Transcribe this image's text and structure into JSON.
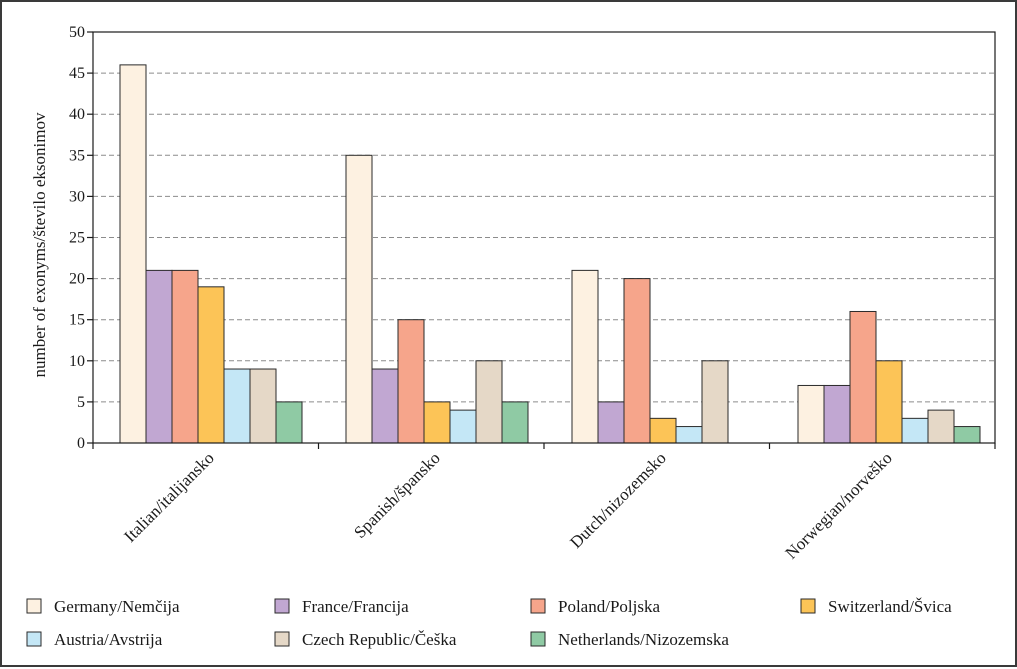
{
  "chart_data": {
    "type": "bar",
    "ylabel": "number of exonyms/število eksonimov",
    "xlabel": "",
    "ylim": [
      0,
      50
    ],
    "yticks": [
      0,
      5,
      10,
      15,
      20,
      25,
      30,
      35,
      40,
      45,
      50
    ],
    "grid": true,
    "legend_position": "bottom",
    "categories": [
      "Italian/italijansko",
      "Spanish/špansko",
      "Dutch/nizozemsko",
      "Norwegian/norveško"
    ],
    "series": [
      {
        "name": "Germany/Nemčija",
        "color": "#fdf1e1",
        "values": [
          46,
          35,
          21,
          7
        ]
      },
      {
        "name": "France/Francija",
        "color": "#c1a7d2",
        "values": [
          21,
          9,
          5,
          7
        ]
      },
      {
        "name": "Poland/Poljska",
        "color": "#f6a58b",
        "values": [
          21,
          15,
          20,
          16
        ]
      },
      {
        "name": "Switzerland/Švica",
        "color": "#fcc457",
        "values": [
          19,
          5,
          3,
          10
        ]
      },
      {
        "name": "Austria/Avstrija",
        "color": "#c4e7f6",
        "values": [
          9,
          4,
          2,
          3
        ]
      },
      {
        "name": "Czech Republic/Češka",
        "color": "#e5d8c7",
        "values": [
          9,
          10,
          10,
          4
        ]
      },
      {
        "name": "Netherlands/Nizozemska",
        "color": "#8fcaa4",
        "values": [
          5,
          5,
          0,
          2
        ]
      }
    ]
  }
}
